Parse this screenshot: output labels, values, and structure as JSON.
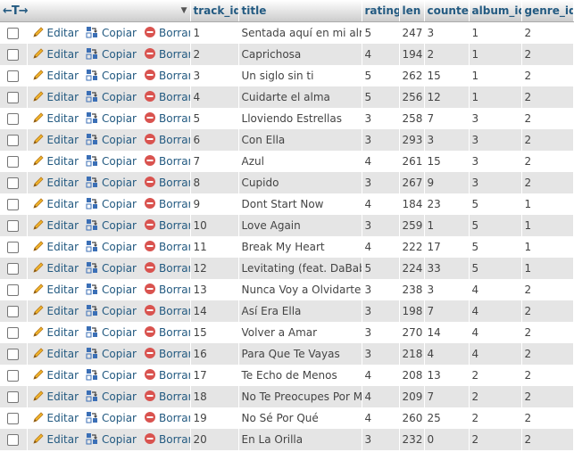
{
  "table": {
    "header": {
      "nav_arrows": "←T→",
      "sort_caret": "▼",
      "columns": [
        "track_id",
        "title",
        "rating",
        "len",
        "counter",
        "album_id",
        "genre_id"
      ]
    },
    "actions": {
      "edit": "Editar",
      "copy": "Copiar",
      "delete": "Borrar"
    },
    "icons": {
      "edit": "pencil-icon",
      "copy": "copy-icon",
      "delete": "delete-icon"
    },
    "colors": {
      "link": "#235a81",
      "pencil": "#e8a317",
      "delete": "#d9534f",
      "row_alt": "#e5e5e5"
    },
    "rows": [
      {
        "track_id": "1",
        "title": "Sentada aquí en mi alma",
        "rating": "5",
        "len": "247",
        "counter": "3",
        "album_id": "1",
        "genre_id": "2"
      },
      {
        "track_id": "2",
        "title": "Caprichosa",
        "rating": "4",
        "len": "194",
        "counter": "2",
        "album_id": "1",
        "genre_id": "2"
      },
      {
        "track_id": "3",
        "title": "Un siglo sin ti",
        "rating": "5",
        "len": "262",
        "counter": "15",
        "album_id": "1",
        "genre_id": "2"
      },
      {
        "track_id": "4",
        "title": "Cuidarte el alma",
        "rating": "5",
        "len": "256",
        "counter": "12",
        "album_id": "1",
        "genre_id": "2"
      },
      {
        "track_id": "5",
        "title": "Lloviendo Estrellas",
        "rating": "3",
        "len": "258",
        "counter": "7",
        "album_id": "3",
        "genre_id": "2"
      },
      {
        "track_id": "6",
        "title": "Con Ella",
        "rating": "3",
        "len": "293",
        "counter": "3",
        "album_id": "3",
        "genre_id": "2"
      },
      {
        "track_id": "7",
        "title": "Azul",
        "rating": "4",
        "len": "261",
        "counter": "15",
        "album_id": "3",
        "genre_id": "2"
      },
      {
        "track_id": "8",
        "title": "Cupido",
        "rating": "3",
        "len": "267",
        "counter": "9",
        "album_id": "3",
        "genre_id": "2"
      },
      {
        "track_id": "9",
        "title": "Dont Start Now",
        "rating": "4",
        "len": "184",
        "counter": "23",
        "album_id": "5",
        "genre_id": "1"
      },
      {
        "track_id": "10",
        "title": "Love Again",
        "rating": "3",
        "len": "259",
        "counter": "1",
        "album_id": "5",
        "genre_id": "1"
      },
      {
        "track_id": "11",
        "title": "Break My Heart",
        "rating": "4",
        "len": "222",
        "counter": "17",
        "album_id": "5",
        "genre_id": "1"
      },
      {
        "track_id": "12",
        "title": "Levitating (feat. DaBaby)",
        "rating": "5",
        "len": "224",
        "counter": "33",
        "album_id": "5",
        "genre_id": "1"
      },
      {
        "track_id": "13",
        "title": "Nunca Voy a Olvidarte",
        "rating": "3",
        "len": "238",
        "counter": "3",
        "album_id": "4",
        "genre_id": "2"
      },
      {
        "track_id": "14",
        "title": "Así Era Ella",
        "rating": "3",
        "len": "198",
        "counter": "7",
        "album_id": "4",
        "genre_id": "2"
      },
      {
        "track_id": "15",
        "title": "Volver a Amar",
        "rating": "3",
        "len": "270",
        "counter": "14",
        "album_id": "4",
        "genre_id": "2"
      },
      {
        "track_id": "16",
        "title": "Para Que Te Vayas",
        "rating": "3",
        "len": "218",
        "counter": "4",
        "album_id": "4",
        "genre_id": "2"
      },
      {
        "track_id": "17",
        "title": "Te Echo de Menos",
        "rating": "4",
        "len": "208",
        "counter": "13",
        "album_id": "2",
        "genre_id": "2"
      },
      {
        "track_id": "18",
        "title": "No Te Preocupes Por Mí",
        "rating": "4",
        "len": "209",
        "counter": "7",
        "album_id": "2",
        "genre_id": "2"
      },
      {
        "track_id": "19",
        "title": "No Sé Por Qué",
        "rating": "4",
        "len": "260",
        "counter": "25",
        "album_id": "2",
        "genre_id": "2"
      },
      {
        "track_id": "20",
        "title": "En La Orilla",
        "rating": "3",
        "len": "232",
        "counter": "0",
        "album_id": "2",
        "genre_id": "2"
      }
    ]
  }
}
